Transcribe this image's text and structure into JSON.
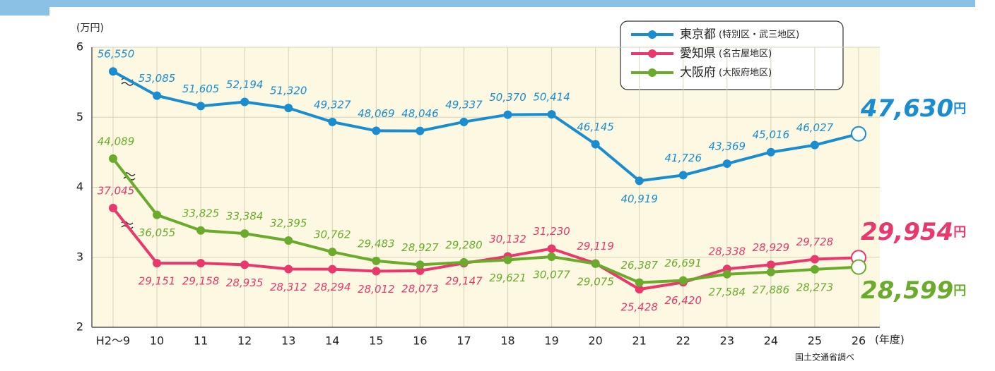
{
  "chart_data": {
    "type": "line",
    "y_axis_label": "(万円)",
    "x_axis_label": "(年度)",
    "source": "国土交通省調べ",
    "end_unit": "円",
    "categories": [
      "H2〜9",
      "10",
      "11",
      "12",
      "13",
      "14",
      "15",
      "16",
      "17",
      "18",
      "19",
      "20",
      "21",
      "22",
      "23",
      "24",
      "25",
      "26"
    ],
    "ylim": [
      2,
      6
    ],
    "yticks": [
      2,
      3,
      4,
      5,
      6
    ],
    "grid": true,
    "series": [
      {
        "name": "東京都",
        "note": "(特別区・武三地区)",
        "color": "#1a8dd0",
        "values": [
          5.655,
          5.3085,
          5.1605,
          5.2194,
          5.132,
          4.9327,
          4.8069,
          4.8046,
          4.9337,
          5.037,
          5.0414,
          4.6145,
          4.0919,
          4.1726,
          4.3369,
          4.5016,
          4.6027,
          4.763
        ],
        "value_labels": [
          "56,550",
          "53,085",
          "51,605",
          "52,194",
          "51,320",
          "49,327",
          "48,069",
          "48,046",
          "49,337",
          "50,370",
          "50,414",
          "46,145",
          "40,919",
          "41,726",
          "43,369",
          "45,016",
          "46,027",
          "47,630"
        ]
      },
      {
        "name": "愛知県",
        "note": "(名古屋地区)",
        "color": "#e8386c",
        "values": [
          3.7045,
          2.9151,
          2.9158,
          2.8935,
          2.8312,
          2.8294,
          2.8012,
          2.8073,
          2.9147,
          3.0132,
          3.123,
          2.9119,
          2.5428,
          2.642,
          2.8338,
          2.8929,
          2.9728,
          2.9954
        ],
        "value_labels": [
          "37,045",
          "29,151",
          "29,158",
          "28,935",
          "28,312",
          "28,294",
          "28,012",
          "28,073",
          "29,147",
          "30,132",
          "31,230",
          "29,119",
          "25,428",
          "26,420",
          "28,338",
          "28,929",
          "29,728",
          "29,954"
        ]
      },
      {
        "name": "大阪府",
        "note": "(大阪府地区)",
        "color": "#6aab2c",
        "values": [
          4.4089,
          3.6055,
          3.3825,
          3.3384,
          3.2395,
          3.0762,
          2.9483,
          2.8927,
          2.928,
          2.9621,
          3.0077,
          2.9075,
          2.6387,
          2.6691,
          2.7584,
          2.7886,
          2.8273,
          2.8599
        ],
        "value_labels": [
          "44,089",
          "36,055",
          "33,825",
          "33,384",
          "32,395",
          "30,762",
          "29,483",
          "28,927",
          "29,280",
          "29,621",
          "30,077",
          "29,075",
          "26,387",
          "26,691",
          "27,584",
          "27,886",
          "28,273",
          "28,599"
        ]
      }
    ]
  }
}
